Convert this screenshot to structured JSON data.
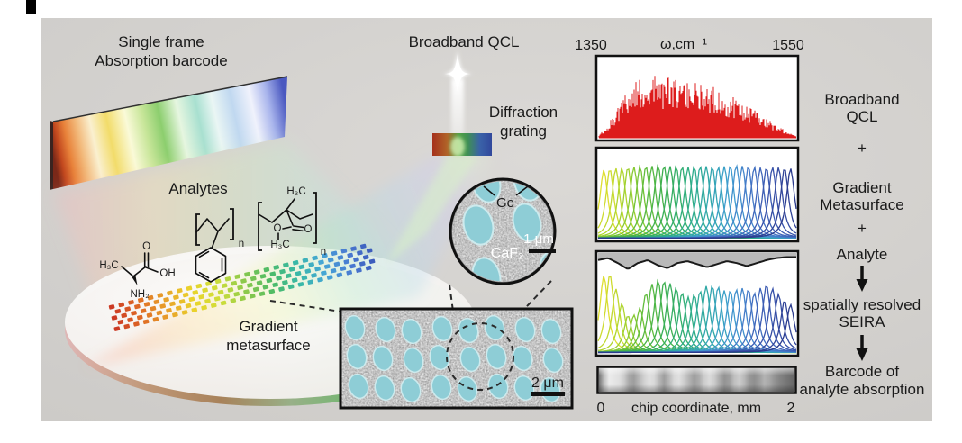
{
  "scene": {
    "title_line1": "Single frame",
    "title_line2": "Absorption barcode",
    "analytes_label": "Analytes",
    "metasurface_label_line1": "Gradient",
    "metasurface_label_line2": "metasurface",
    "qcl_label": "Broadband QCL",
    "grating_label_line1": "Diffraction",
    "grating_label_line2": "grating",
    "sem_inset": {
      "ge_label": "Ge",
      "substrate_label": "CaF₂",
      "scalebar_label": "1 μm"
    },
    "sem_image": {
      "scalebar_label": "2 μm"
    }
  },
  "molecules": {
    "alanine": {
      "methyl": "H₃C",
      "carbonyl_o": "O",
      "hydroxyl": "OH",
      "amine": "NH₂"
    },
    "polystyrene": {
      "repeat": "n"
    },
    "pmma": {
      "methyl_top": "H₃C",
      "ester_o": "O",
      "carbonyl_o": "O",
      "methyl_bottom": "H₃C",
      "repeat": "n"
    }
  },
  "axis_top": {
    "min": "1350",
    "label": "ω,cm⁻¹",
    "max": "1550"
  },
  "axis_bottom": {
    "min": "0",
    "label": "chip coordinate, mm",
    "max": "2"
  },
  "flow": {
    "step1_line1": "Broadband",
    "step1_line2": "QCL",
    "plus1": "+",
    "step2_line1": "Gradient",
    "step2_line2": "Metasurface",
    "plus2": "+",
    "step3": "Analyte",
    "step4_line1": "spatially resolved",
    "step4_line2": "SEIRA",
    "step5_line1": "Barcode of",
    "step5_line2": "analyte absorption"
  },
  "metasurface_strip": {
    "rows": 5,
    "cols": 27,
    "row_gap": 6.2,
    "colors": [
      "#cc3a24",
      "#df6c26",
      "#e8a12a",
      "#ead32c",
      "#cede3a",
      "#8cc94a",
      "#4dbb66",
      "#39b9a6",
      "#45a5d6",
      "#4a7ad2",
      "#3a57b8"
    ]
  },
  "colors": {
    "figure_background": "#d5d3d0",
    "qcl_red": "#dd1c1c",
    "sem_resonator_teal": "#8ecdd6",
    "panel_border": "#111111",
    "grating_gradient": [
      "#a5301c",
      "#b06428",
      "#4f9f42",
      "#3f8f55",
      "#3a62a8",
      "#31489c"
    ]
  },
  "chart_data": [
    {
      "id": "qcl_spectrum",
      "type": "area",
      "title": "Broadband QCL",
      "x_axis": {
        "label": "ω,cm⁻¹",
        "range": [
          1350,
          1550
        ]
      },
      "color": "#dd1c1c",
      "envelope": [
        0.02,
        0.15,
        0.45,
        0.65,
        0.78,
        0.85,
        0.83,
        0.8,
        0.76,
        0.73,
        0.75,
        0.71,
        0.64,
        0.57,
        0.5,
        0.42,
        0.34,
        0.25,
        0.16,
        0.08,
        0.02
      ]
    },
    {
      "id": "metasurface_resonances",
      "type": "line",
      "title": "Gradient Metasurface",
      "x_axis": {
        "label": "ω,cm⁻¹",
        "range": [
          1350,
          1550
        ]
      },
      "n_peaks": 32,
      "peak_heights": [
        0.8,
        0.82,
        0.83,
        0.84,
        0.85,
        0.85,
        0.86,
        0.85,
        0.85,
        0.84,
        0.85,
        0.85,
        0.84,
        0.85,
        0.86,
        0.85,
        0.84,
        0.83,
        0.84,
        0.83,
        0.82
      ],
      "color_stops": [
        "#dede30",
        "#a8d42e",
        "#62bd3c",
        "#3aae52",
        "#2fae7e",
        "#2fa8a8",
        "#3f9fd0",
        "#4579c8",
        "#3a55ae",
        "#2c3c8e"
      ]
    },
    {
      "id": "seira_spectra",
      "type": "line",
      "title": "spatially resolved SEIRA",
      "x_axis": {
        "label": "ω,cm⁻¹",
        "range": [
          1350,
          1550
        ]
      },
      "n_peaks": 32,
      "peak_heights": [
        0.8,
        0.82,
        0.55,
        0.35,
        0.45,
        0.7,
        0.76,
        0.74,
        0.66,
        0.58,
        0.62,
        0.7,
        0.7,
        0.64,
        0.66,
        0.68,
        0.62,
        0.72,
        0.66,
        0.55,
        0.48
      ],
      "color_stops": [
        "#dede30",
        "#a8d42e",
        "#62bd3c",
        "#3aae52",
        "#2fae7e",
        "#2fa8a8",
        "#3f9fd0",
        "#4579c8",
        "#3a55ae",
        "#2c3c8e"
      ],
      "absorption_envelope": [
        0.93,
        0.95,
        0.9,
        0.84,
        0.9,
        0.93,
        0.88,
        0.85,
        0.9,
        0.92,
        0.89,
        0.86,
        0.89,
        0.92,
        0.9,
        0.87,
        0.9,
        0.93,
        0.95,
        0.96,
        0.96
      ],
      "envelope_color": "#1a1a1a",
      "fill_above_color": "#b9b9b9"
    },
    {
      "id": "absorption_barcode",
      "type": "heatmap",
      "title": "Barcode of analyte absorption",
      "x_axis": {
        "label": "chip coordinate, mm",
        "range": [
          0,
          2
        ]
      },
      "gray_levels": [
        0.45,
        0.75,
        0.92,
        0.9,
        0.88,
        0.8,
        0.66,
        0.62,
        0.72,
        0.82,
        0.88,
        0.85,
        0.72,
        0.62,
        0.72,
        0.85,
        0.88,
        0.8,
        0.7,
        0.62,
        0.68,
        0.8,
        0.86,
        0.8,
        0.68,
        0.58,
        0.62,
        0.75,
        0.8,
        0.72,
        0.6,
        0.56,
        0.62,
        0.7,
        0.66,
        0.58,
        0.52,
        0.48,
        0.44,
        0.4
      ]
    }
  ]
}
